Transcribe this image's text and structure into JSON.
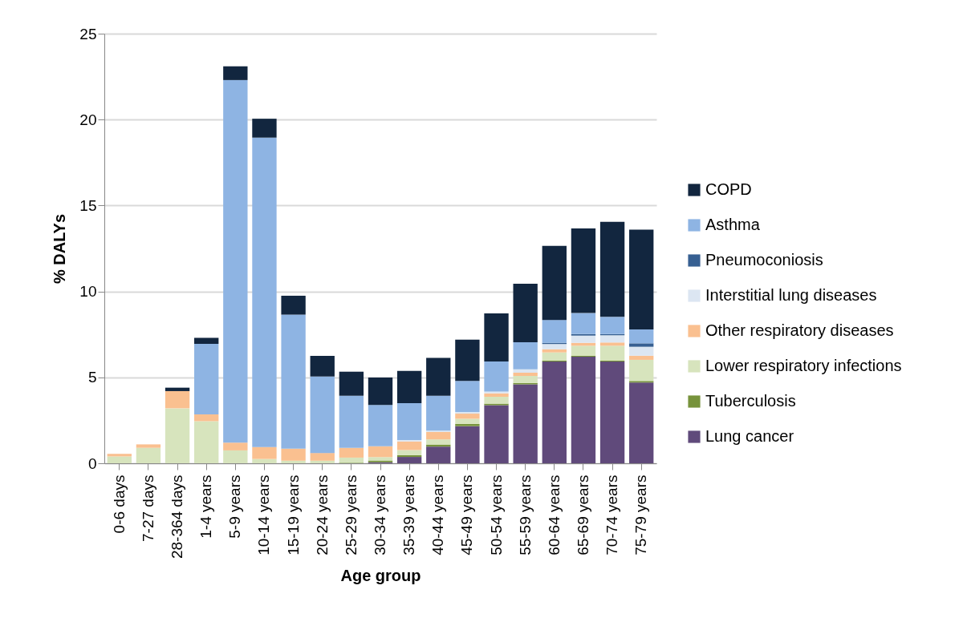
{
  "chart_data": {
    "type": "bar",
    "stacked": true,
    "xlabel": "Age group",
    "ylabel": "% DALYs",
    "categories": [
      "0-6 days",
      "7-27 days",
      "28-364 days",
      "1-4 years",
      "5-9 years",
      "10-14 years",
      "15-19 years",
      "20-24 years",
      "25-29 years",
      "30-34 years",
      "35-39 years",
      "40-44 years",
      "45-49 years",
      "50-54 years",
      "55-59 years",
      "60-64 years",
      "65-69 years",
      "70-74 years",
      "75-79 years"
    ],
    "series": [
      {
        "name": "Lung cancer",
        "color": "#604a7b",
        "values": [
          0,
          0,
          0,
          0,
          0,
          0,
          0,
          0,
          0,
          0.06,
          0.37,
          0.97,
          2.16,
          3.38,
          4.6,
          5.92,
          6.2,
          5.92,
          4.7
        ]
      },
      {
        "name": "Tuberculosis",
        "color": "#77933c",
        "values": [
          0,
          0,
          0,
          0,
          0,
          0,
          0,
          0,
          0.03,
          0.1,
          0.1,
          0.12,
          0.13,
          0.09,
          0.08,
          0.05,
          0.05,
          0.05,
          0.09
        ]
      },
      {
        "name": "Lower respiratory infections",
        "color": "#d7e4bd",
        "values": [
          0.4,
          0.9,
          3.2,
          2.45,
          0.75,
          0.25,
          0.15,
          0.15,
          0.3,
          0.2,
          0.3,
          0.3,
          0.3,
          0.4,
          0.4,
          0.48,
          0.59,
          0.87,
          1.23
        ]
      },
      {
        "name": "Other respiratory diseases",
        "color": "#fac090",
        "values": [
          0.15,
          0.2,
          1.0,
          0.4,
          0.45,
          0.7,
          0.7,
          0.45,
          0.57,
          0.63,
          0.5,
          0.43,
          0.3,
          0.2,
          0.19,
          0.19,
          0.17,
          0.19,
          0.24
        ]
      },
      {
        "name": "Interstitial lung diseases",
        "color": "#dce6f2",
        "values": [
          0,
          0,
          0,
          0,
          0,
          0,
          0,
          0,
          0,
          0,
          0.08,
          0.08,
          0.1,
          0.11,
          0.2,
          0.3,
          0.42,
          0.42,
          0.52
        ]
      },
      {
        "name": "Pneumoconiosis",
        "color": "#376092",
        "values": [
          0,
          0,
          0,
          0,
          0,
          0,
          0,
          0,
          0,
          0,
          0,
          0,
          0,
          0,
          0,
          0.07,
          0.09,
          0.07,
          0.2
        ]
      },
      {
        "name": "Asthma",
        "color": "#8eb4e3",
        "values": [
          0,
          0,
          0,
          4.1,
          21.1,
          18.0,
          7.8,
          4.45,
          3.03,
          2.4,
          2.15,
          2.03,
          1.8,
          1.74,
          1.57,
          1.33,
          1.22,
          1.0,
          0.81
        ]
      },
      {
        "name": "COPD",
        "color": "#12263f",
        "values": [
          0,
          0,
          0.2,
          0.35,
          0.8,
          1.1,
          1.1,
          1.2,
          1.4,
          1.6,
          1.88,
          2.2,
          2.4,
          2.8,
          3.41,
          4.31,
          4.93,
          5.53,
          5.81
        ]
      }
    ],
    "ylim": [
      0,
      25
    ],
    "yticks": [
      0,
      5,
      10,
      15,
      20,
      25
    ],
    "grid": "y",
    "legend": "right"
  }
}
